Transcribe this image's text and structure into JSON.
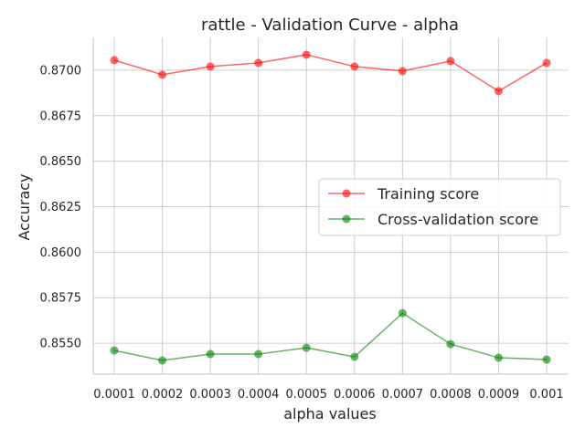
{
  "chart_data": {
    "type": "line",
    "title": "rattle - Validation Curve - alpha",
    "xlabel": "alpha values",
    "ylabel": "Accuracy",
    "categories": [
      "0.0001",
      "0.0002",
      "0.0003",
      "0.0004",
      "0.0005",
      "0.0006",
      "0.0007",
      "0.0008",
      "0.0009",
      "0.001"
    ],
    "ylim": [
      0.8533,
      0.8718
    ],
    "yticks": [
      "0.8550",
      "0.8575",
      "0.8600",
      "0.8625",
      "0.8650",
      "0.8675",
      "0.8700"
    ],
    "grid": true,
    "legend_position": "center-right",
    "series": [
      {
        "name": "Training score",
        "color": "#ff0000",
        "values": [
          0.87055,
          0.86975,
          0.8702,
          0.8704,
          0.87085,
          0.8702,
          0.86995,
          0.8705,
          0.86885,
          0.8704
        ]
      },
      {
        "name": "Cross-validation score",
        "color": "#008000",
        "values": [
          0.8546,
          0.85405,
          0.8544,
          0.8544,
          0.85475,
          0.85425,
          0.85665,
          0.85495,
          0.8542,
          0.8541
        ]
      }
    ]
  }
}
